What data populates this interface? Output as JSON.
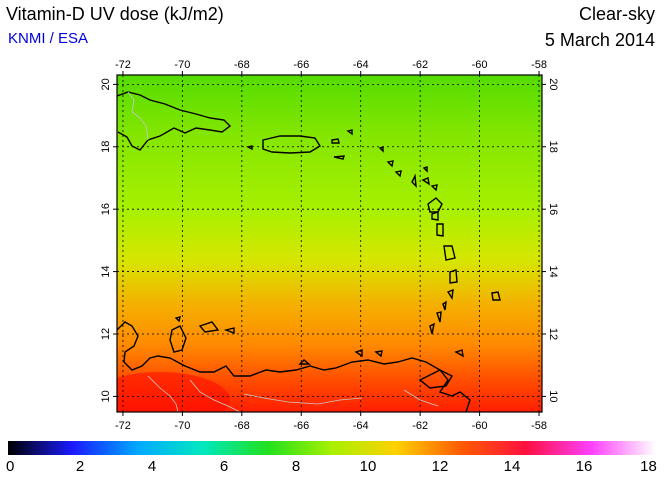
{
  "header": {
    "title": "Vitamin-D UV dose (kJ/m2)",
    "credit": "KNMI / ESA",
    "sky_condition": "Clear-sky",
    "date": "5 March 2014"
  },
  "map": {
    "lon_ticks": [
      "-72",
      "-70",
      "-68",
      "-66",
      "-64",
      "-62",
      "-60",
      "-58"
    ],
    "lat_ticks": [
      "10",
      "12",
      "14",
      "16",
      "18",
      "20"
    ],
    "lon_range": [
      -72.2,
      -57.9
    ],
    "lat_range": [
      9.5,
      20.3
    ],
    "field_colors": [
      "#54dc00",
      "#84e600",
      "#a8f000",
      "#d7e600",
      "#f4b000",
      "#ff8a00",
      "#ff5000",
      "#ff1e00"
    ]
  },
  "colorbar": {
    "labels": [
      "0",
      "2",
      "4",
      "6",
      "8",
      "10",
      "12",
      "14",
      "16",
      "18"
    ],
    "range": [
      0,
      18
    ],
    "stops": [
      "#000000",
      "#1a1aff",
      "#00a8ff",
      "#00e8c0",
      "#20e020",
      "#a8f000",
      "#ffd000",
      "#ff5a00",
      "#ff1040",
      "#ff40ff",
      "#ffffff"
    ]
  }
}
